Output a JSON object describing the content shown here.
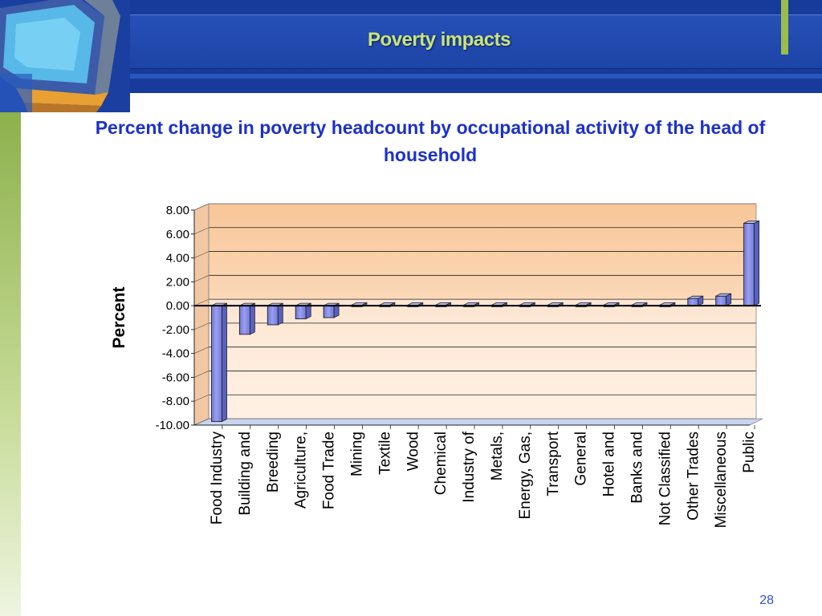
{
  "slide": {
    "header_title": "Poverty impacts",
    "slide_number": "28",
    "logo_icon": "computer-monitor-icon",
    "colors": {
      "header": "#163b9a",
      "accent": "#9bbd4a",
      "title_text": "#c9e57a",
      "chart_title": "#1c31c9"
    }
  },
  "chart_data": {
    "type": "bar",
    "title": "Percent change in poverty headcount by occupational activity of the head of household",
    "ylabel": "Percent",
    "xlabel": "",
    "ylim": [
      -10,
      8
    ],
    "yticks": [
      "8.00",
      "6.00",
      "4.00",
      "2.00",
      "0.00",
      "-2.00",
      "-4.00",
      "-6.00",
      "-8.00",
      "-10.00"
    ],
    "grid": true,
    "legend": "none",
    "bar_color": "#8a8fe6",
    "categories": [
      "Food Industry",
      "Building and",
      "Breeding",
      "Agriculture,",
      "Food Trade",
      "Mining",
      "Textile",
      "Wood",
      "Chemical",
      "Industry of",
      "Metals,",
      "Energy, Gas,",
      "Transport",
      "General",
      "Hotel and",
      "Banks and",
      "Not Classified",
      "Other Trades",
      "Miscellaneous",
      "Public"
    ],
    "values": [
      -9.7,
      -2.4,
      -1.6,
      -1.1,
      -1.0,
      0.05,
      0.05,
      0.05,
      0.05,
      0.05,
      0.05,
      0.05,
      0.05,
      0.05,
      0.05,
      0.05,
      0.05,
      0.6,
      0.8,
      6.9
    ]
  }
}
